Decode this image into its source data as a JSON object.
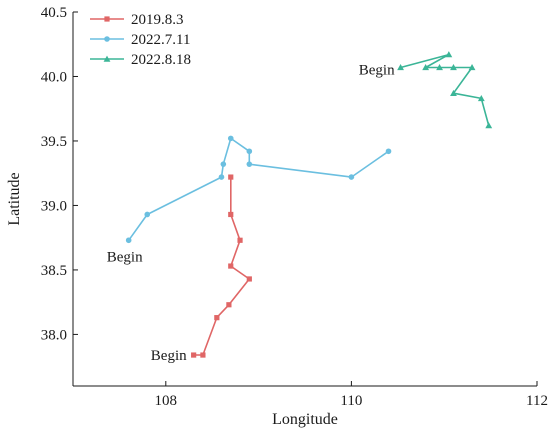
{
  "chart_data": {
    "type": "line",
    "xlabel": "Longitude",
    "ylabel": "Latitude",
    "xlim": [
      107.0,
      112.0
    ],
    "ylim": [
      37.6,
      40.5
    ],
    "x_ticks": [
      108,
      110,
      112
    ],
    "x_tick_labels": [
      "108",
      "110",
      "112"
    ],
    "y_ticks": [
      38.0,
      38.5,
      39.0,
      39.5,
      40.0,
      40.5
    ],
    "y_tick_labels": [
      "38.0",
      "38.5",
      "39.0",
      "39.5",
      "40.0",
      "40.5"
    ],
    "grid": false,
    "legend_position": "top-left",
    "series": [
      {
        "name": "2019.8.3",
        "color": "#e06666",
        "marker": "square",
        "points": [
          [
            108.3,
            37.84
          ],
          [
            108.4,
            37.84
          ],
          [
            108.55,
            38.13
          ],
          [
            108.68,
            38.23
          ],
          [
            108.9,
            38.43
          ],
          [
            108.7,
            38.53
          ],
          [
            108.8,
            38.73
          ],
          [
            108.7,
            38.93
          ],
          [
            108.7,
            39.22
          ]
        ]
      },
      {
        "name": "2022.7.11",
        "color": "#6bbfe0",
        "marker": "circle",
        "points": [
          [
            107.6,
            38.73
          ],
          [
            107.8,
            38.93
          ],
          [
            108.6,
            39.22
          ],
          [
            108.62,
            39.32
          ],
          [
            108.7,
            39.52
          ],
          [
            108.9,
            39.42
          ],
          [
            108.9,
            39.32
          ],
          [
            110.0,
            39.22
          ],
          [
            110.4,
            39.42
          ]
        ]
      },
      {
        "name": "2022.8.18",
        "color": "#3bb597",
        "marker": "triangle",
        "points": [
          [
            110.53,
            40.07
          ],
          [
            111.05,
            40.17
          ],
          [
            110.8,
            40.07
          ],
          [
            110.95,
            40.07
          ],
          [
            111.1,
            40.07
          ],
          [
            111.3,
            40.07
          ],
          [
            111.1,
            39.87
          ],
          [
            111.4,
            39.83
          ],
          [
            111.48,
            39.62
          ]
        ]
      }
    ],
    "annotations": [
      {
        "text": "Begin",
        "series": "2019.8.3"
      },
      {
        "text": "Begin",
        "series": "2022.7.11"
      },
      {
        "text": "Begin",
        "series": "2022.8.18"
      }
    ]
  }
}
